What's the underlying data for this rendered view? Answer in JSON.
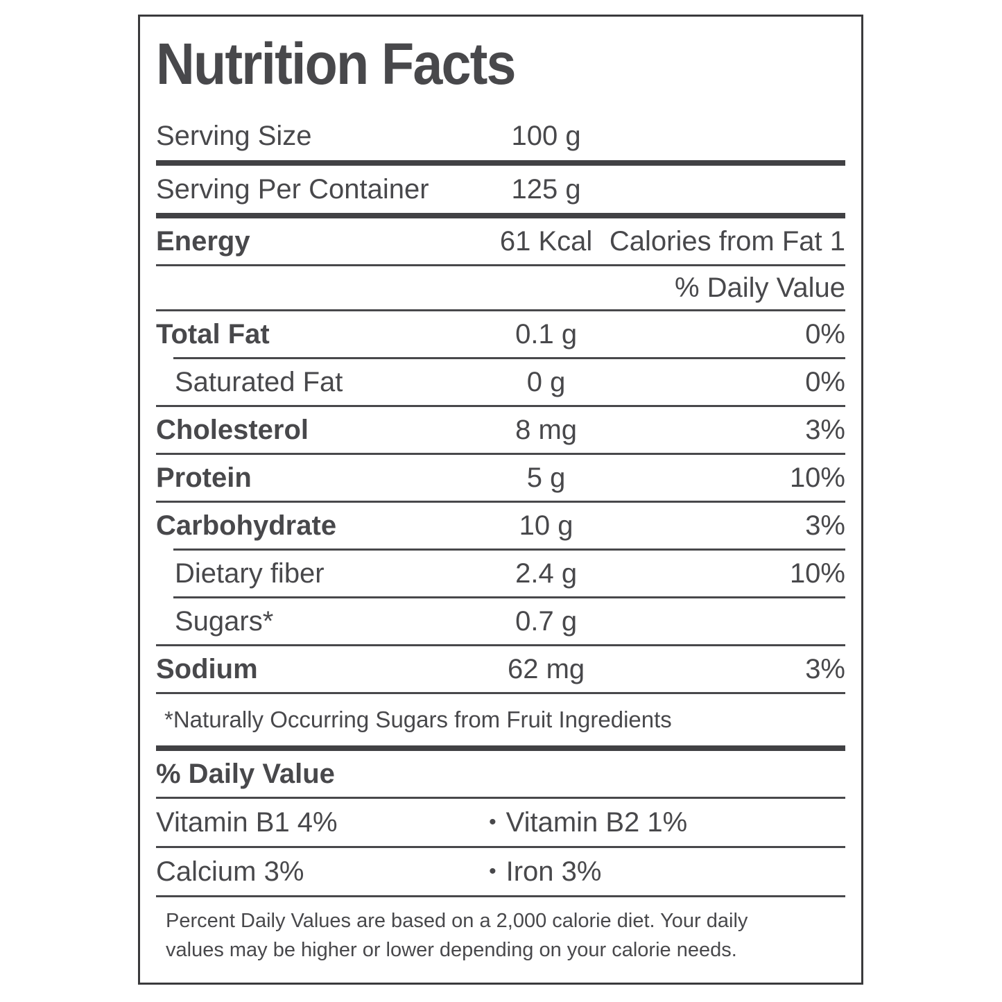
{
  "title": "Nutrition Facts",
  "serving": {
    "size_label": "Serving Size",
    "size_value": "100 g",
    "container_label": "Serving Per Container",
    "container_value": "125 g"
  },
  "energy": {
    "label": "Energy",
    "value": "61 Kcal",
    "right": "Calories from Fat 1"
  },
  "daily_value_header": "% Daily Value",
  "nutrients": [
    {
      "label": "Total Fat",
      "value": "0.1 g",
      "pct": "0%"
    },
    {
      "label": "Saturated Fat",
      "value": "0 g",
      "pct": "0%"
    },
    {
      "label": "Cholesterol",
      "value": "8 mg",
      "pct": "3%"
    },
    {
      "label": "Protein",
      "value": "5 g",
      "pct": "10%"
    },
    {
      "label": "Carbohydrate",
      "value": "10 g",
      "pct": "3%"
    },
    {
      "label": "Dietary fiber",
      "value": "2.4 g",
      "pct": "10%"
    },
    {
      "label": "Sugars*",
      "value": "0.7 g",
      "pct": ""
    },
    {
      "label": "Sodium",
      "value": "62 mg",
      "pct": "3%"
    }
  ],
  "footnote": "*Naturally Occurring Sugars from Fruit Ingredients",
  "daily_values": {
    "heading": "% Daily Value",
    "bullet": "•",
    "rows": [
      {
        "left": "Vitamin B1 4%",
        "right": "Vitamin B2 1%"
      },
      {
        "left": "Calcium 3%",
        "right": "Iron 3%"
      }
    ]
  },
  "footer_lines": [
    "Percent Daily Values are based on a 2,000 calorie diet. Your daily",
    "values may be higher or lower depending on your calorie needs."
  ],
  "colors": {
    "text": "#48484b",
    "line": "#414144",
    "background": "#ffffff"
  }
}
